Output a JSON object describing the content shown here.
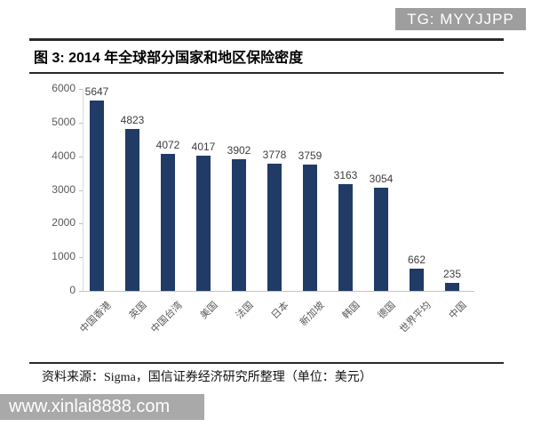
{
  "header": {
    "tg_badge": "TG: MYYJJPP"
  },
  "figure": {
    "title": "图 3: 2014 年全球部分国家和地区保险密度",
    "source_note": "资料来源：Sigma，国信证券经济研究所整理（单位：美元）"
  },
  "watermark": {
    "url_text": "www.xinlai8888.com"
  },
  "chart_data": {
    "type": "bar",
    "title": "2014 年全球部分国家和地区保险密度",
    "categories": [
      "中国香港",
      "英国",
      "中国台湾",
      "美国",
      "法国",
      "日本",
      "新加坡",
      "韩国",
      "德国",
      "世界平均",
      "中国"
    ],
    "values": [
      5647,
      4823,
      4072,
      4017,
      3902,
      3778,
      3759,
      3163,
      3054,
      662,
      235
    ],
    "unit": "美元",
    "xlabel": "",
    "ylabel": "",
    "ylim": [
      0,
      6000
    ],
    "yticks": [
      0,
      1000,
      2000,
      3000,
      4000,
      5000,
      6000
    ],
    "grid": false,
    "legend": "none",
    "value_labels": true,
    "bar_color": "#203b66"
  },
  "colors": {
    "bar": "#203b66",
    "badge_bg": "#9e9e9e",
    "watermark_bg": "#a9a9a9",
    "rule_dark": "#2a2a2a",
    "axis_text": "#595959",
    "value_text": "#3d3d3d"
  }
}
